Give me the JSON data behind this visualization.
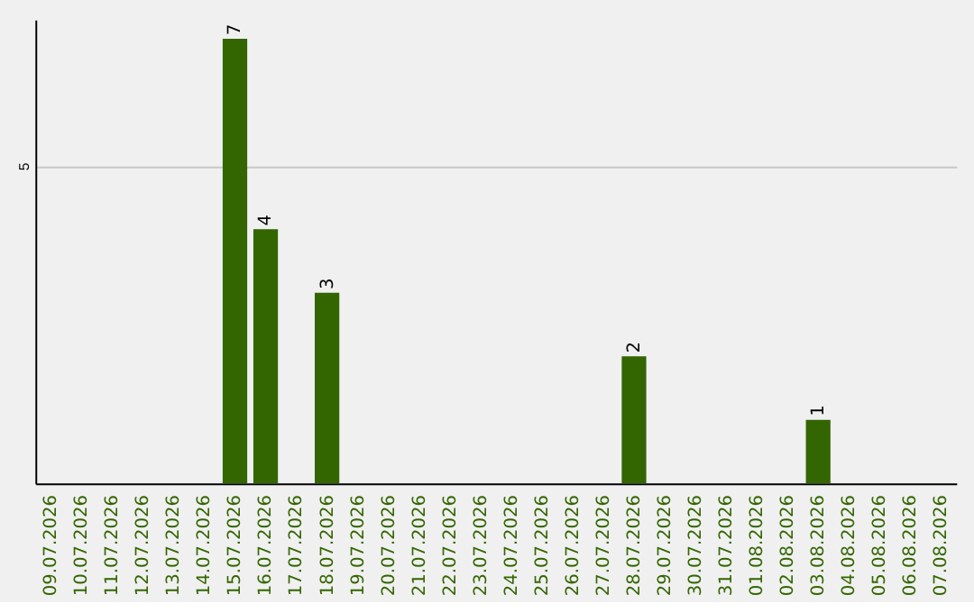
{
  "chart_data": {
    "type": "bar",
    "categories": [
      "09.07.2026",
      "10.07.2026",
      "11.07.2026",
      "12.07.2026",
      "13.07.2026",
      "14.07.2026",
      "15.07.2026",
      "16.07.2026",
      "17.07.2026",
      "18.07.2026",
      "19.07.2026",
      "20.07.2026",
      "21.07.2026",
      "22.07.2026",
      "23.07.2026",
      "24.07.2026",
      "25.07.2026",
      "26.07.2026",
      "27.07.2026",
      "28.07.2026",
      "29.07.2026",
      "30.07.2026",
      "31.07.2026",
      "01.08.2026",
      "02.08.2026",
      "03.08.2026",
      "04.08.2026",
      "05.08.2026",
      "06.08.2026",
      "07.08.2026"
    ],
    "values": [
      null,
      null,
      null,
      null,
      null,
      null,
      7,
      4,
      null,
      3,
      null,
      null,
      null,
      null,
      null,
      null,
      null,
      null,
      null,
      2,
      null,
      null,
      null,
      null,
      null,
      1,
      null,
      null,
      null,
      null
    ],
    "color": "#336600",
    "ylim": [
      0,
      7.3
    ],
    "yticks": [
      5
    ],
    "grid": "y",
    "data_labels": true
  }
}
